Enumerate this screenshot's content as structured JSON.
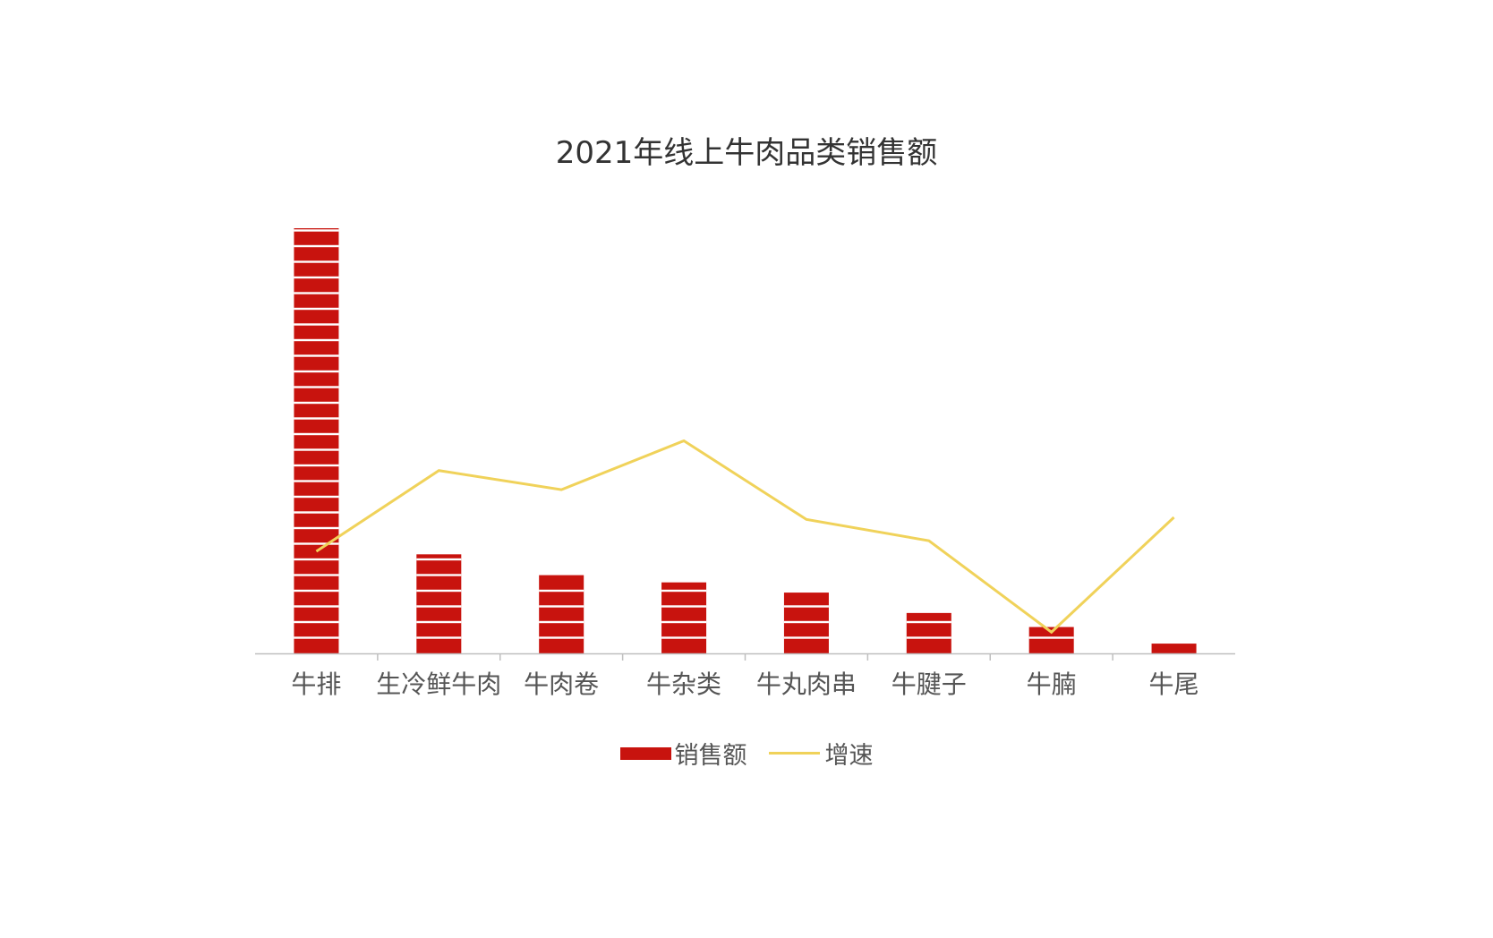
{
  "chart_data": {
    "type": "bar",
    "title": "2021年线上牛肉品类销售额",
    "categories": [
      "牛排",
      "生冷鲜牛肉",
      "牛肉卷",
      "牛杂类",
      "牛丸肉串",
      "牛腱子",
      "牛腩",
      "牛尾"
    ],
    "series": [
      {
        "name": "销售额",
        "type": "bar",
        "values": [
          100,
          23.3,
          18.4,
          16.7,
          14.3,
          9.5,
          6.2,
          2.3
        ]
      },
      {
        "name": "增速",
        "type": "line",
        "values": [
          24,
          43,
          38.5,
          50,
          31.5,
          26.5,
          5,
          32
        ]
      }
    ],
    "ylim": [
      0,
      100
    ],
    "xlabel": "",
    "ylabel": "",
    "grid": false,
    "legend_position": "bottom",
    "colors": {
      "bar": "#C8130E",
      "line": "#F0D25A",
      "axis": "#BFBFBF",
      "text": "#555555"
    }
  }
}
